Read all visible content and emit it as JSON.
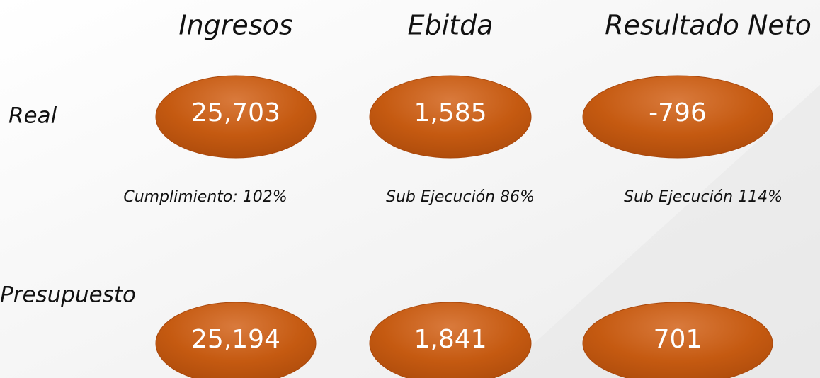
{
  "columns": [
    "Ingresos",
    "Ebitda",
    "Resultado Neto"
  ],
  "rows": [
    {
      "label": "Real",
      "values": [
        "25,703",
        "1,585",
        "-796"
      ]
    },
    {
      "label": "Presupuesto",
      "values": [
        "25,194",
        "1,841",
        "701"
      ]
    }
  ],
  "notes": [
    "Cumplimiento: 102%",
    "Sub Ejecución 86%",
    "Sub Ejecución 114%"
  ]
}
